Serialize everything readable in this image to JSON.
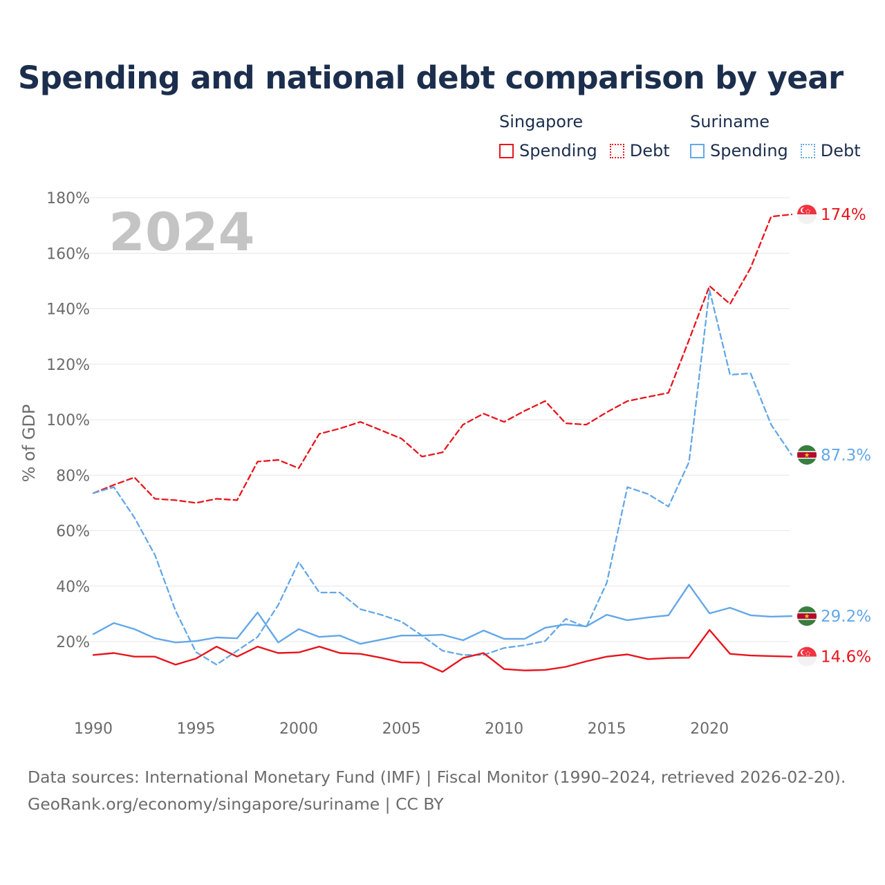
{
  "title": "Spending and national debt comparison by year",
  "legend": {
    "countries": [
      {
        "name": "Singapore",
        "color": "#e8141c",
        "spending_label": "Spending",
        "debt_label": "Debt"
      },
      {
        "name": "Suriname",
        "color": "#63a7e8",
        "spending_label": "Spending",
        "debt_label": "Debt"
      }
    ]
  },
  "year_overlay": "2024",
  "footer": {
    "line1": "Data sources: International Monetary Fund (IMF) | Fiscal Monitor (1990–2024, retrieved 2026-02-20).",
    "line2": "GeoRank.org/economy/singapore/suriname | CC BY"
  },
  "chart_data": {
    "type": "line",
    "title": "Spending and national debt comparison by year",
    "xlabel": "",
    "ylabel": "% of GDP",
    "xlim": [
      1990,
      2024
    ],
    "ylim": [
      0,
      180
    ],
    "yticks": [
      20,
      40,
      60,
      80,
      100,
      120,
      140,
      160,
      180
    ],
    "ytick_labels": [
      "20%",
      "40%",
      "60%",
      "80%",
      "100%",
      "120%",
      "140%",
      "160%",
      "180%"
    ],
    "xticks": [
      1990,
      1995,
      2000,
      2005,
      2010,
      2015,
      2020
    ],
    "xtick_labels": [
      "1990",
      "1995",
      "2000",
      "2005",
      "2010",
      "2015",
      "2020"
    ],
    "grid": true,
    "x": [
      1990,
      1991,
      1992,
      1993,
      1994,
      1995,
      1996,
      1997,
      1998,
      1999,
      2000,
      2001,
      2002,
      2003,
      2004,
      2005,
      2006,
      2007,
      2008,
      2009,
      2010,
      2011,
      2012,
      2013,
      2014,
      2015,
      2016,
      2017,
      2018,
      2019,
      2020,
      2021,
      2022,
      2023,
      2024
    ],
    "series": [
      {
        "name": "Singapore Debt",
        "country": "Singapore",
        "metric": "Debt",
        "color": "#e8141c",
        "dash": true,
        "values": [
          73.5,
          76.5,
          79.2,
          71.5,
          71,
          70,
          71.5,
          71,
          84.9,
          85.5,
          82.5,
          94.9,
          96.8,
          99.2,
          96.2,
          93.2,
          86.7,
          88.2,
          98.2,
          102.2,
          99.2,
          103.2,
          106.7,
          98.7,
          98.2,
          102.7,
          106.7,
          108.2,
          109.7,
          128.7,
          148.2,
          141.7,
          154.7,
          173.2,
          174
        ],
        "end_label": "174%"
      },
      {
        "name": "Suriname Debt",
        "country": "Suriname",
        "metric": "Debt",
        "color": "#63a7e8",
        "dash": true,
        "values": [
          73.5,
          75.7,
          64.7,
          51.2,
          31.2,
          16.2,
          11.7,
          16.7,
          21.7,
          33.2,
          48.7,
          37.7,
          37.7,
          31.7,
          29.7,
          27.2,
          22.2,
          16.7,
          15.2,
          15.2,
          17.7,
          18.7,
          20.2,
          28.2,
          25.2,
          41.2,
          75.7,
          73.2,
          68.7,
          84.7,
          146.7,
          116.2,
          116.7,
          98.2,
          87.3
        ],
        "end_label": "87.3%"
      },
      {
        "name": "Suriname Spending",
        "country": "Suriname",
        "metric": "Spending",
        "color": "#63a7e8",
        "dash": false,
        "values": [
          22.7,
          26.7,
          24.5,
          21.2,
          19.7,
          20.2,
          21.5,
          21.2,
          30.5,
          19.7,
          24.5,
          21.7,
          22.2,
          19.2,
          20.7,
          22.2,
          22.2,
          22.5,
          20.5,
          24.0,
          21.0,
          21.0,
          25.0,
          26.2,
          25.5,
          29.7,
          27.7,
          28.7,
          29.5,
          40.5,
          30.2,
          32.2,
          29.5,
          29.0,
          29.2
        ],
        "end_label": "29.2%"
      },
      {
        "name": "Singapore Spending",
        "country": "Singapore",
        "metric": "Spending",
        "color": "#e8141c",
        "dash": false,
        "values": [
          15.2,
          15.9,
          14.6,
          14.6,
          11.7,
          13.9,
          18.2,
          14.6,
          18.2,
          15.9,
          16.1,
          18.2,
          15.9,
          15.6,
          14.2,
          12.5,
          12.4,
          9.1,
          14.1,
          15.9,
          10.1,
          9.6,
          9.8,
          10.9,
          12.9,
          14.6,
          15.4,
          13.7,
          14.1,
          14.2,
          24.2,
          15.6,
          15.0,
          14.8,
          14.6
        ],
        "end_label": "14.6%"
      }
    ]
  }
}
